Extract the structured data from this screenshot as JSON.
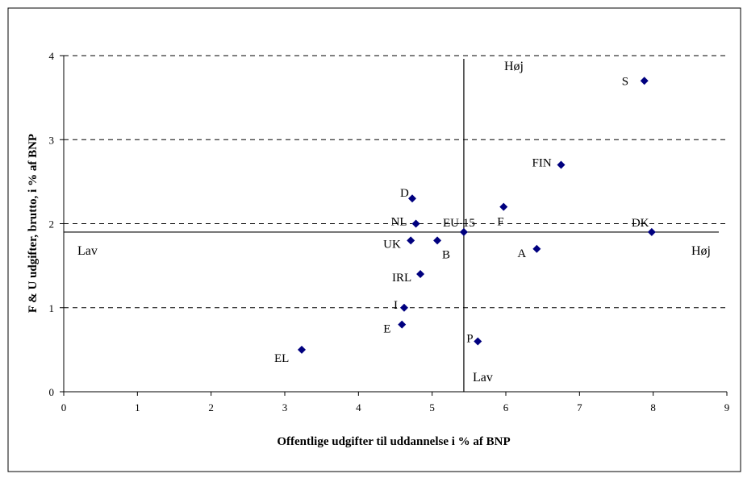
{
  "chart_data": {
    "type": "scatter",
    "title": "",
    "xlabel": "Offentlige udgifter til uddannelse i % af BNP",
    "ylabel": "F & U udgifter, brutto, i % af BNP",
    "xlim": [
      0,
      9
    ],
    "ylim": [
      0,
      4
    ],
    "xticks": [
      "0",
      "1",
      "2",
      "3",
      "4",
      "5",
      "6",
      "7",
      "8",
      "9"
    ],
    "yticks": [
      "0",
      "1",
      "2",
      "3",
      "4"
    ],
    "grid": "horizontal-dashed",
    "marker_color": "#00007f",
    "reference_lines": {
      "x": 5.43,
      "y": 1.9
    },
    "quadrant_labels": {
      "left": "Lav",
      "right": "Høj",
      "top": "Høj",
      "bottom": "Lav"
    },
    "points": [
      {
        "label": "S",
        "x": 7.88,
        "y": 3.7
      },
      {
        "label": "FIN",
        "x": 6.75,
        "y": 2.7
      },
      {
        "label": "D",
        "x": 4.73,
        "y": 2.3
      },
      {
        "label": "F",
        "x": 5.97,
        "y": 2.2
      },
      {
        "label": "NL",
        "x": 4.78,
        "y": 2.0
      },
      {
        "label": "EU-15",
        "x": 5.43,
        "y": 1.9
      },
      {
        "label": "DK",
        "x": 7.98,
        "y": 1.9
      },
      {
        "label": "UK",
        "x": 4.71,
        "y": 1.8
      },
      {
        "label": "B",
        "x": 5.07,
        "y": 1.8
      },
      {
        "label": "A",
        "x": 6.42,
        "y": 1.7
      },
      {
        "label": "IRL",
        "x": 4.84,
        "y": 1.4
      },
      {
        "label": "I",
        "x": 4.62,
        "y": 1.0
      },
      {
        "label": "E",
        "x": 4.59,
        "y": 0.8
      },
      {
        "label": "P",
        "x": 5.62,
        "y": 0.6
      },
      {
        "label": "EL",
        "x": 3.23,
        "y": 0.5
      }
    ]
  }
}
